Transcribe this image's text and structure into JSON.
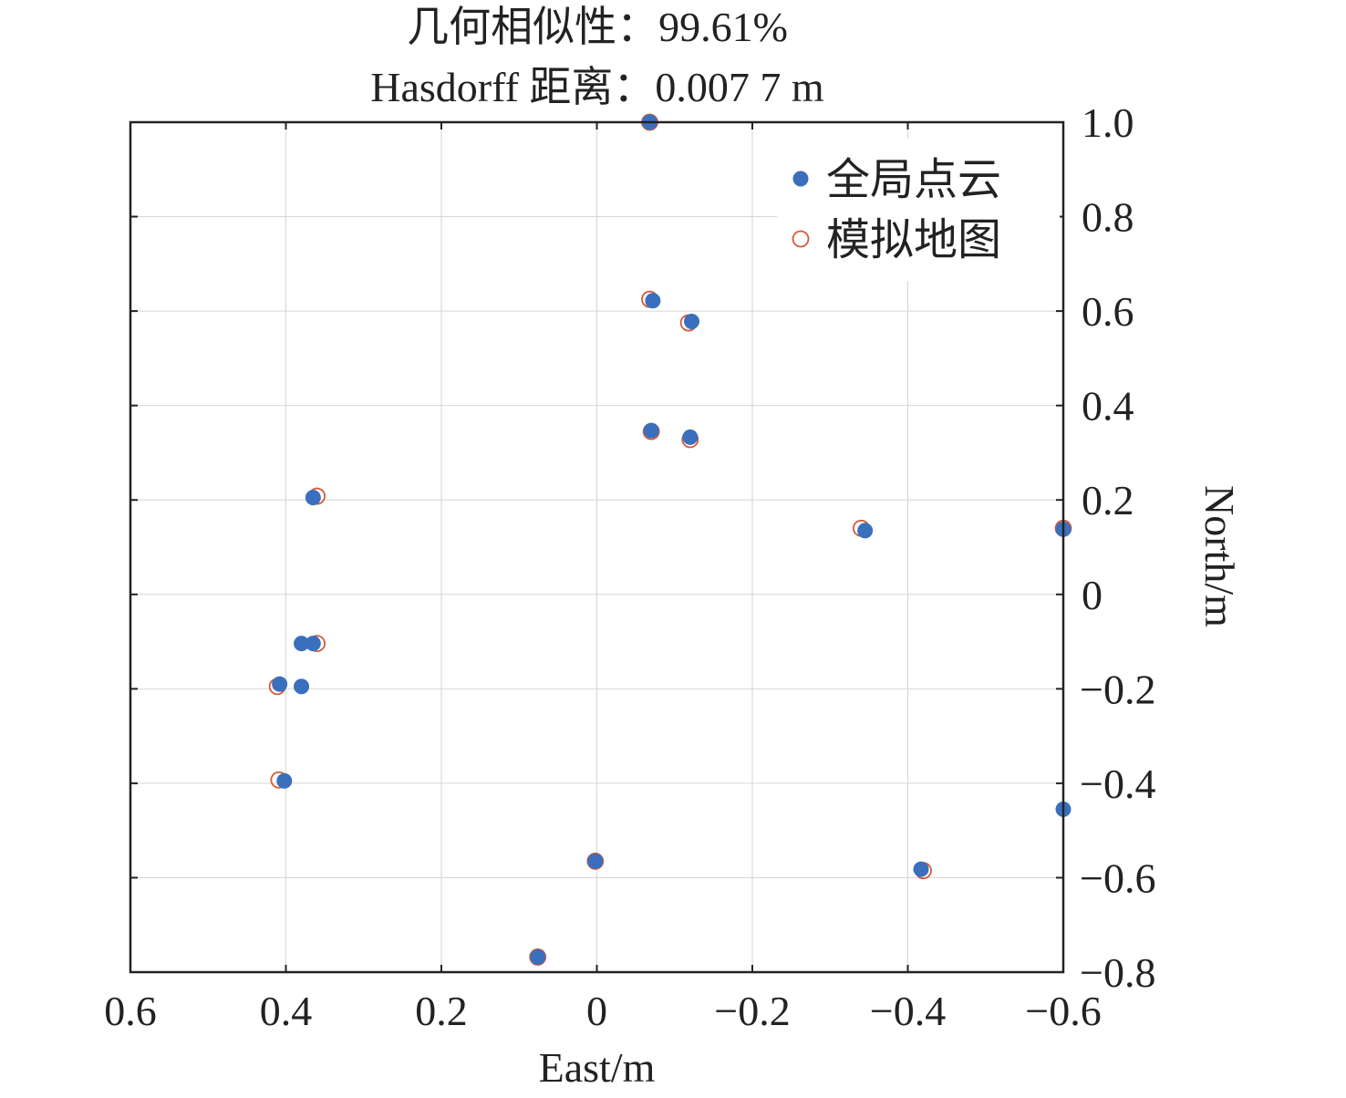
{
  "title_lines": [
    "几何相似性：99.61%",
    "Hasdorff 距离：0.007 7 m"
  ],
  "chart_data": {
    "type": "scatter",
    "title": "几何相似性：99.61%\nHasdorff 距离：0.007 7 m",
    "xlabel": "East/m",
    "ylabel": "North/m",
    "xlim": [
      0.6,
      -0.6
    ],
    "ylim": [
      -0.8,
      1.0
    ],
    "x_reversed": true,
    "y_axis_side": "right",
    "grid": true,
    "legend_position": "top-right",
    "x_ticks": [
      0.6,
      0.4,
      0.2,
      0,
      -0.2,
      -0.4,
      -0.6
    ],
    "x_tick_labels": [
      "0.6",
      "0.4",
      "0.2",
      "0",
      "−0.2",
      "−0.4",
      "−0.6"
    ],
    "y_ticks": [
      1.0,
      0.8,
      0.6,
      0.4,
      0.2,
      0,
      -0.2,
      -0.4,
      -0.6,
      -0.8
    ],
    "y_tick_labels": [
      "1.0",
      "0.8",
      "0.6",
      "0.4",
      "0.2",
      "0",
      "−0.2",
      "−0.4",
      "−0.6",
      "−0.8"
    ],
    "series": [
      {
        "name": "全局点云",
        "marker": "filled-circle",
        "color": "#3a6fbd",
        "points": [
          {
            "x": -0.068,
            "y": 1.0
          },
          {
            "x": -0.072,
            "y": 0.622
          },
          {
            "x": -0.122,
            "y": 0.578
          },
          {
            "x": -0.07,
            "y": 0.347
          },
          {
            "x": -0.12,
            "y": 0.333
          },
          {
            "x": 0.365,
            "y": 0.205
          },
          {
            "x": -0.345,
            "y": 0.135
          },
          {
            "x": -0.6,
            "y": 0.138
          },
          {
            "x": 0.38,
            "y": -0.104
          },
          {
            "x": 0.365,
            "y": -0.104
          },
          {
            "x": 0.408,
            "y": -0.19
          },
          {
            "x": 0.38,
            "y": -0.195
          },
          {
            "x": 0.402,
            "y": -0.395
          },
          {
            "x": -0.6,
            "y": -0.455
          },
          {
            "x": 0.002,
            "y": -0.565
          },
          {
            "x": -0.417,
            "y": -0.582
          },
          {
            "x": 0.076,
            "y": -0.768
          }
        ]
      },
      {
        "name": "模拟地图",
        "marker": "open-circle",
        "color": "#d45a3a",
        "points": [
          {
            "x": -0.068,
            "y": 1.0
          },
          {
            "x": -0.068,
            "y": 0.625
          },
          {
            "x": -0.118,
            "y": 0.575
          },
          {
            "x": -0.07,
            "y": 0.345
          },
          {
            "x": -0.12,
            "y": 0.328
          },
          {
            "x": 0.36,
            "y": 0.208
          },
          {
            "x": -0.34,
            "y": 0.14
          },
          {
            "x": -0.6,
            "y": 0.14
          },
          {
            "x": 0.36,
            "y": -0.104
          },
          {
            "x": 0.411,
            "y": -0.195
          },
          {
            "x": 0.409,
            "y": -0.393
          },
          {
            "x": 0.002,
            "y": -0.565
          },
          {
            "x": -0.42,
            "y": -0.585
          },
          {
            "x": 0.076,
            "y": -0.768
          }
        ]
      }
    ]
  }
}
